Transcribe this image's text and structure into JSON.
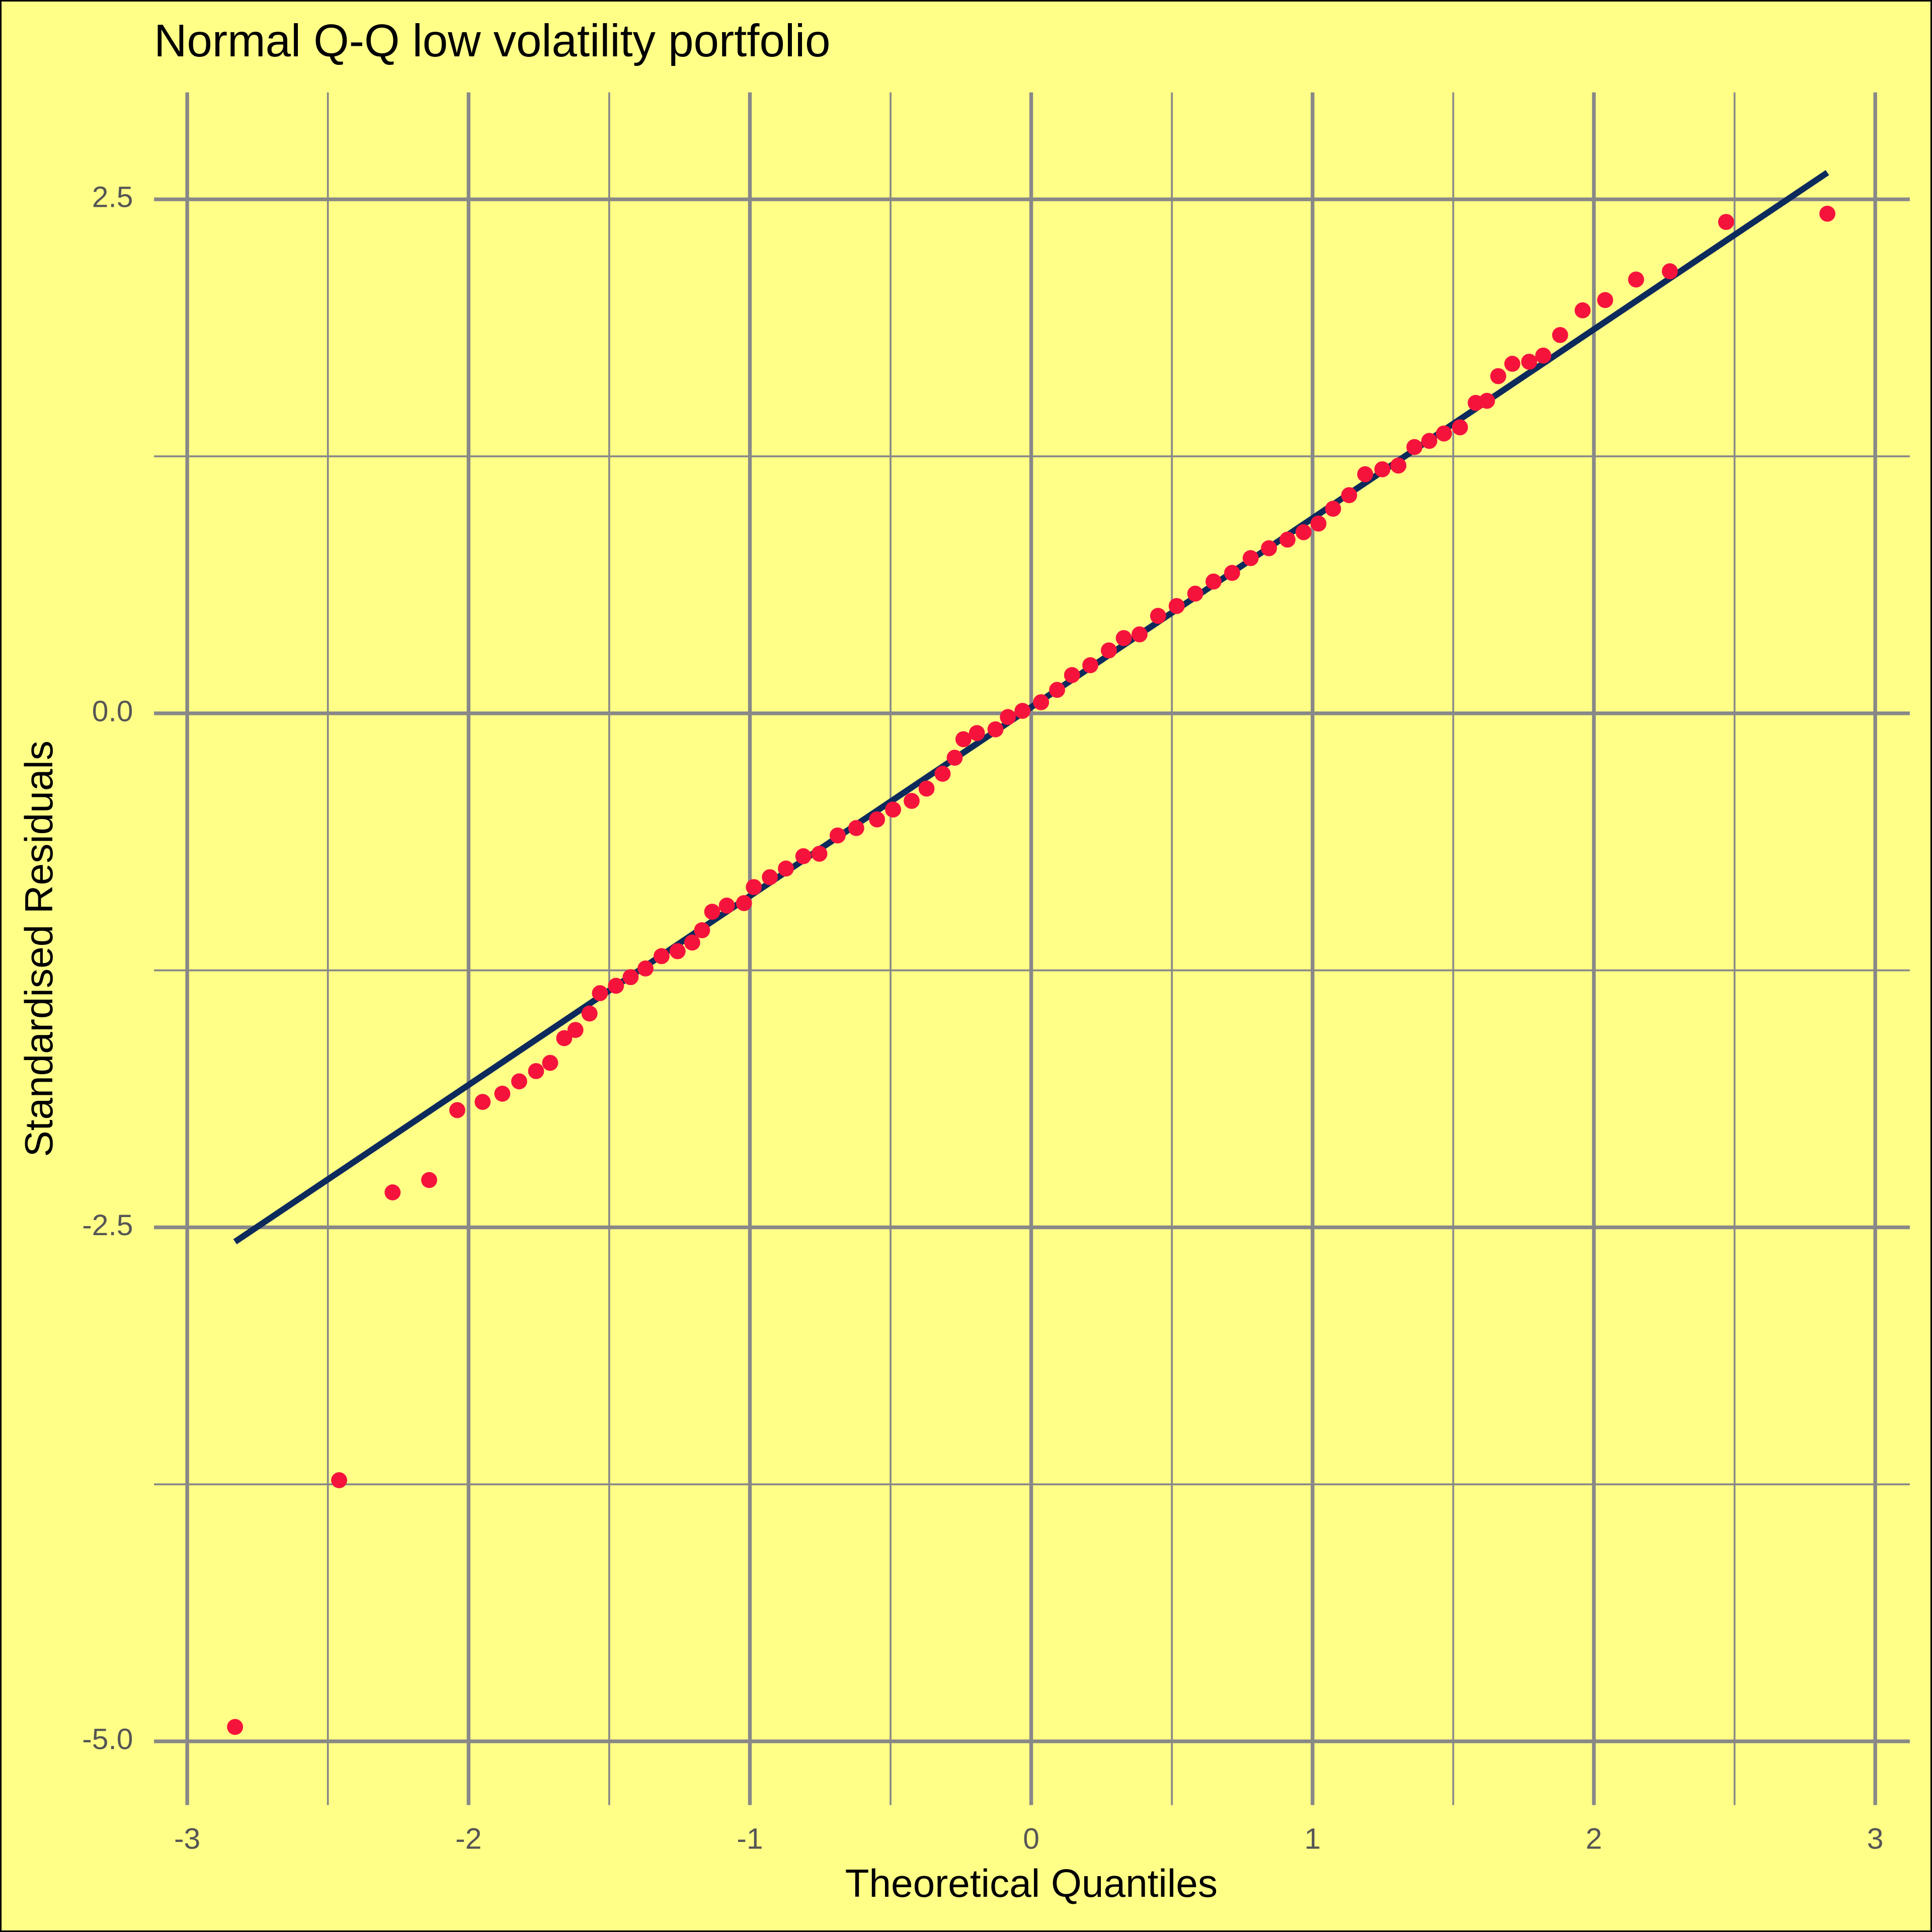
{
  "chart_data": {
    "type": "scatter",
    "title": "Normal Q-Q low volatility portfolio",
    "x_label": "Theoretical Quantiles",
    "y_label": "Standardised Residuals",
    "x": [
      -2.83,
      -2.46,
      -2.27,
      -2.14,
      -2.04,
      -1.95,
      -1.88,
      -1.82,
      -1.76,
      -1.71,
      -1.66,
      -1.62,
      -1.57,
      -1.533,
      -1.476,
      -1.424,
      -1.371,
      -1.314,
      -1.257,
      -1.205,
      -1.17,
      -1.134,
      -1.082,
      -1.021,
      -0.986,
      -0.929,
      -0.872,
      -0.81,
      -0.753,
      -0.688,
      -0.622,
      -0.548,
      -0.491,
      -0.425,
      -0.372,
      -0.315,
      -0.272,
      -0.241,
      -0.193,
      -0.127,
      -0.083,
      -0.031,
      0.035,
      0.092,
      0.145,
      0.21,
      0.276,
      0.329,
      0.385,
      0.451,
      0.517,
      0.583,
      0.648,
      0.714,
      0.78,
      0.845,
      0.911,
      0.968,
      1.021,
      1.073,
      1.13,
      1.187,
      1.248,
      1.305,
      1.362,
      1.415,
      1.467,
      1.524,
      1.58,
      1.62,
      1.66,
      1.71,
      1.77,
      1.82,
      1.88,
      1.96,
      2.04,
      2.15,
      2.27,
      2.47,
      2.83
    ],
    "values": [
      -4.93,
      -3.73,
      -2.33,
      -2.27,
      -1.93,
      -1.89,
      -1.85,
      -1.79,
      -1.74,
      -1.7,
      -1.58,
      -1.54,
      -1.46,
      -1.361,
      -1.325,
      -1.283,
      -1.241,
      -1.181,
      -1.157,
      -1.115,
      -1.055,
      -0.965,
      -0.935,
      -0.923,
      -0.845,
      -0.797,
      -0.755,
      -0.695,
      -0.683,
      -0.594,
      -0.558,
      -0.516,
      -0.468,
      -0.426,
      -0.366,
      -0.294,
      -0.216,
      -0.126,
      -0.096,
      -0.078,
      -0.018,
      0.012,
      0.054,
      0.114,
      0.186,
      0.234,
      0.306,
      0.366,
      0.384,
      0.474,
      0.522,
      0.582,
      0.641,
      0.683,
      0.755,
      0.803,
      0.845,
      0.881,
      0.923,
      0.995,
      1.061,
      1.163,
      1.187,
      1.205,
      1.295,
      1.325,
      1.361,
      1.391,
      1.51,
      1.52,
      1.64,
      1.7,
      1.71,
      1.74,
      1.84,
      1.96,
      2.01,
      2.11,
      2.15,
      2.39,
      2.43
    ],
    "color": "#f5133c",
    "reference_line": {
      "x": [
        -2.83,
        2.83
      ],
      "y": [
        -2.57,
        2.63
      ],
      "color": "#0d2a5c"
    },
    "xlim": [
      -3.118,
      3.123
    ],
    "ylim": [
      -5.31,
      3.02
    ],
    "xticks": [
      -3,
      -2,
      -1,
      0,
      1,
      2,
      3
    ],
    "yticks": [
      {
        "value": -5,
        "label": "-5.0"
      },
      -2.5,
      {
        "value": 0,
        "label": "0.0"
      },
      2.5
    ],
    "minor_xticks": [
      -2.5,
      -1.5,
      -0.5,
      0.5,
      1.5,
      2.5
    ],
    "minor_yticks": [
      -3.75,
      -1.25,
      1.25
    ],
    "grid": true,
    "background": "#ffff88"
  }
}
